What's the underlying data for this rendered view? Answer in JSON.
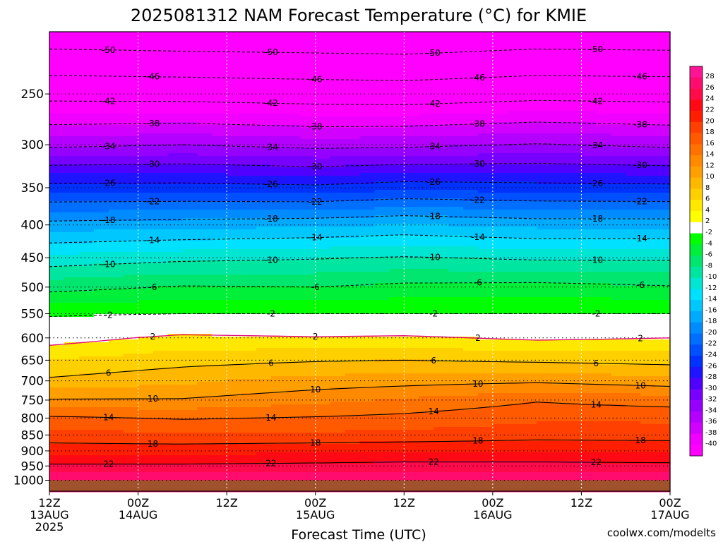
{
  "chart_data": {
    "type": "heatmap",
    "title": "2025081312 NAM Forecast Temperature (°C) for KMIE",
    "xlabel": "Forecast Time (UTC)",
    "ylabel": "",
    "credit": "coolwx.com/modelts",
    "x_ticks": [
      {
        "hour": 0,
        "time": "12Z",
        "date": "13AUG",
        "year": "2025"
      },
      {
        "hour": 12,
        "time": "00Z",
        "date": "14AUG",
        "year": ""
      },
      {
        "hour": 24,
        "time": "12Z",
        "date": "",
        "year": ""
      },
      {
        "hour": 36,
        "time": "00Z",
        "date": "15AUG",
        "year": ""
      },
      {
        "hour": 48,
        "time": "12Z",
        "date": "",
        "year": ""
      },
      {
        "hour": 60,
        "time": "00Z",
        "date": "16AUG",
        "year": ""
      },
      {
        "hour": 72,
        "time": "12Z",
        "date": "",
        "year": ""
      },
      {
        "hour": 84,
        "time": "00Z",
        "date": "17AUG",
        "year": ""
      }
    ],
    "xlim": [
      0,
      84
    ],
    "y_ticks": [
      250,
      300,
      350,
      400,
      450,
      500,
      550,
      600,
      650,
      700,
      750,
      800,
      850,
      900,
      950,
      1000
    ],
    "ylim_hPa": [
      1040,
      200
    ],
    "log_pressure_axis": true,
    "ground_color": "#a0522d",
    "colorbar": {
      "labels": [
        "28",
        "26",
        "24",
        "22",
        "20",
        "18",
        "16",
        "14",
        "12",
        "10",
        "8",
        "6",
        "4",
        "2",
        "-2",
        "-4",
        "-6",
        "-8",
        "-10",
        "-12",
        "-14",
        "-16",
        "-18",
        "-20",
        "-22",
        "-24",
        "-26",
        "-28",
        "-30",
        "-32",
        "-34",
        "-36",
        "-38",
        "-40"
      ],
      "colors": [
        "#ff1493",
        "#ff0c6e",
        "#ff0a4a",
        "#ff0a14",
        "#ff1e00",
        "#ff4000",
        "#ff5a00",
        "#ff7200",
        "#ff8a00",
        "#ff9f00",
        "#ffb800",
        "#ffd000",
        "#ffe800",
        "#ffff00",
        "#ffffff",
        "#00ff00",
        "#00f03a",
        "#00e66e",
        "#00e6a0",
        "#00e6d2",
        "#00e0ff",
        "#00c8ff",
        "#00aaff",
        "#008cff",
        "#006eff",
        "#0050ff",
        "#0032ff",
        "#1e14ff",
        "#5000ff",
        "#7800ff",
        "#9600ff",
        "#b400ff",
        "#d200ff",
        "#f000ff",
        "#ff00ff"
      ]
    },
    "contour_levels": [
      -50,
      -46,
      -42,
      -38,
      -34,
      -30,
      -26,
      -22,
      -18,
      -14,
      -10,
      -6,
      -2,
      2,
      6,
      10,
      14,
      18,
      22
    ],
    "profiles": [
      {
        "hour": 0,
        "levels": [
          {
            "p": 1000,
            "t": 25.5
          },
          {
            "p": 950,
            "t": 22.4
          },
          {
            "p": 900,
            "t": 19.2
          },
          {
            "p": 850,
            "t": 16.8
          },
          {
            "p": 800,
            "t": 14.4
          },
          {
            "p": 750,
            "t": 10.2
          },
          {
            "p": 700,
            "t": 6.4
          },
          {
            "p": 650,
            "t": 4.0
          },
          {
            "p": 600,
            "t": 1.0
          },
          {
            "p": 550,
            "t": -2.4
          },
          {
            "p": 500,
            "t": -6.8
          },
          {
            "p": 450,
            "t": -11.4
          },
          {
            "p": 400,
            "t": -17.2
          },
          {
            "p": 350,
            "t": -25.0
          },
          {
            "p": 300,
            "t": -34.6
          },
          {
            "p": 250,
            "t": -43.2
          },
          {
            "p": 200,
            "t": -52.6
          }
        ]
      },
      {
        "hour": 18,
        "levels": [
          {
            "p": 1000,
            "t": 25.5
          },
          {
            "p": 950,
            "t": 22.4
          },
          {
            "p": 900,
            "t": 19.2
          },
          {
            "p": 850,
            "t": 16.4
          },
          {
            "p": 800,
            "t": 13.8
          },
          {
            "p": 750,
            "t": 10.2
          },
          {
            "p": 700,
            "t": 7.6
          },
          {
            "p": 650,
            "t": 5.2
          },
          {
            "p": 600,
            "t": 2.6
          },
          {
            "p": 550,
            "t": -2.0
          },
          {
            "p": 500,
            "t": -5.8
          },
          {
            "p": 450,
            "t": -10.6
          },
          {
            "p": 400,
            "t": -16.8
          },
          {
            "p": 350,
            "t": -25.0
          },
          {
            "p": 300,
            "t": -34.0
          },
          {
            "p": 250,
            "t": -43.4
          },
          {
            "p": 200,
            "t": -53.0
          }
        ]
      },
      {
        "hour": 36,
        "levels": [
          {
            "p": 1000,
            "t": 25.5
          },
          {
            "p": 950,
            "t": 22.6
          },
          {
            "p": 900,
            "t": 19.6
          },
          {
            "p": 850,
            "t": 16.4
          },
          {
            "p": 800,
            "t": 14.2
          },
          {
            "p": 750,
            "t": 11.4
          },
          {
            "p": 700,
            "t": 8.8
          },
          {
            "p": 650,
            "t": 5.8
          },
          {
            "p": 600,
            "t": 2.2
          },
          {
            "p": 550,
            "t": -2.0
          },
          {
            "p": 500,
            "t": -6.0
          },
          {
            "p": 450,
            "t": -10.2
          },
          {
            "p": 400,
            "t": -16.4
          },
          {
            "p": 350,
            "t": -25.4
          },
          {
            "p": 300,
            "t": -34.8
          },
          {
            "p": 250,
            "t": -43.8
          },
          {
            "p": 200,
            "t": -53.2
          }
        ]
      },
      {
        "hour": 48,
        "levels": [
          {
            "p": 1000,
            "t": 25.5
          },
          {
            "p": 950,
            "t": 22.8
          },
          {
            "p": 900,
            "t": 19.8
          },
          {
            "p": 850,
            "t": 16.6
          },
          {
            "p": 800,
            "t": 14.6
          },
          {
            "p": 750,
            "t": 12.2
          },
          {
            "p": 700,
            "t": 9.2
          },
          {
            "p": 650,
            "t": 6.0
          },
          {
            "p": 600,
            "t": 2.4
          },
          {
            "p": 550,
            "t": -2.0
          },
          {
            "p": 500,
            "t": -5.4
          },
          {
            "p": 450,
            "t": -9.8
          },
          {
            "p": 400,
            "t": -15.8
          },
          {
            "p": 350,
            "t": -24.6
          },
          {
            "p": 300,
            "t": -34.6
          },
          {
            "p": 250,
            "t": -44.0
          },
          {
            "p": 200,
            "t": -53.4
          }
        ]
      },
      {
        "hour": 66,
        "levels": [
          {
            "p": 1000,
            "t": 25.5
          },
          {
            "p": 950,
            "t": 22.8
          },
          {
            "p": 900,
            "t": 19.8
          },
          {
            "p": 850,
            "t": 17.2
          },
          {
            "p": 800,
            "t": 15.6
          },
          {
            "p": 750,
            "t": 13.8
          },
          {
            "p": 700,
            "t": 9.6
          },
          {
            "p": 650,
            "t": 5.6
          },
          {
            "p": 600,
            "t": 1.6
          },
          {
            "p": 550,
            "t": -2.0
          },
          {
            "p": 500,
            "t": -5.2
          },
          {
            "p": 450,
            "t": -10.4
          },
          {
            "p": 400,
            "t": -16.6
          },
          {
            "p": 350,
            "t": -25.0
          },
          {
            "p": 300,
            "t": -33.8
          },
          {
            "p": 250,
            "t": -43.2
          },
          {
            "p": 200,
            "t": -52.6
          }
        ]
      },
      {
        "hour": 84,
        "levels": [
          {
            "p": 1000,
            "t": 25.5
          },
          {
            "p": 950,
            "t": 22.6
          },
          {
            "p": 900,
            "t": 19.8
          },
          {
            "p": 850,
            "t": 17.0
          },
          {
            "p": 800,
            "t": 15.6
          },
          {
            "p": 750,
            "t": 13.0
          },
          {
            "p": 700,
            "t": 8.8
          },
          {
            "p": 650,
            "t": 5.2
          },
          {
            "p": 600,
            "t": 2.0
          },
          {
            "p": 550,
            "t": -2.0
          },
          {
            "p": 500,
            "t": -5.8
          },
          {
            "p": 450,
            "t": -10.4
          },
          {
            "p": 400,
            "t": -16.6
          },
          {
            "p": 350,
            "t": -25.2
          },
          {
            "p": 300,
            "t": -34.6
          },
          {
            "p": 250,
            "t": -43.4
          },
          {
            "p": 200,
            "t": -52.8
          }
        ]
      }
    ]
  }
}
